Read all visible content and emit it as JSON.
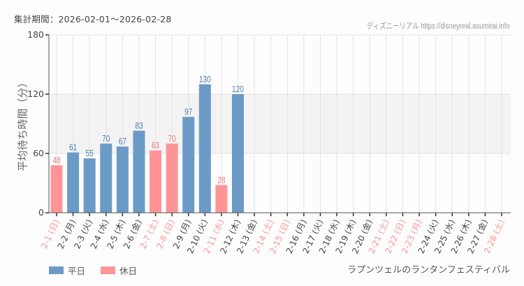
{
  "header": {
    "period_label": "集計期間：2026-02-01～2026-02-28",
    "credit": "ディズニーリアル https://disneyreal.asumirai.info"
  },
  "colors": {
    "weekday": "#6b9ac7",
    "holiday": "#ff9496",
    "weekday_text": "#4e7fb3",
    "holiday_text": "#f27a7c",
    "axis_text": "#444444",
    "band": "#f3f3f3",
    "grid": "#e3e3e3"
  },
  "legend": {
    "weekday_label": "平日",
    "holiday_label": "休日"
  },
  "event_name": "ラプンツェルのランタンフェスティバル",
  "chart_data": {
    "type": "bar",
    "title": "集計期間：2026-02-01～2026-02-28",
    "xlabel": "",
    "ylabel": "平均待ち時間（分）",
    "ylim": [
      0,
      180
    ],
    "yticks": [
      0,
      60,
      120,
      180
    ],
    "shaded_band": [
      60,
      120
    ],
    "grid": true,
    "legend_position": "bottom-left",
    "categories": [
      "2-1 (日)",
      "2-2 (月)",
      "2-3 (火)",
      "2-4 (水)",
      "2-5 (木)",
      "2-6 (金)",
      "2-7 (土)",
      "2-8 (日)",
      "2-9 (月)",
      "2-10 (火)",
      "2-11 (水)",
      "2-12 (木)",
      "2-13 (金)",
      "2-14 (土)",
      "2-15 (日)",
      "2-16 (月)",
      "2-17 (火)",
      "2-18 (水)",
      "2-19 (木)",
      "2-20 (金)",
      "2-21 (土)",
      "2-22 (日)",
      "2-23 (月)",
      "2-24 (火)",
      "2-25 (水)",
      "2-26 (木)",
      "2-27 (金)",
      "2-28 (土)"
    ],
    "holiday": [
      true,
      false,
      false,
      false,
      false,
      false,
      true,
      true,
      false,
      false,
      true,
      false,
      false,
      true,
      true,
      false,
      false,
      false,
      false,
      false,
      true,
      true,
      true,
      false,
      false,
      false,
      false,
      true
    ],
    "values": [
      48,
      61,
      55,
      70,
      67,
      83,
      63,
      70,
      97,
      130,
      28,
      120,
      null,
      null,
      null,
      null,
      null,
      null,
      null,
      null,
      null,
      null,
      null,
      null,
      null,
      null,
      null,
      null
    ],
    "series": [
      {
        "name": "平日",
        "values": [
          null,
          61,
          55,
          70,
          67,
          83,
          null,
          null,
          97,
          130,
          null,
          120,
          null,
          null,
          null,
          null,
          null,
          null,
          null,
          null,
          null,
          null,
          null,
          null,
          null,
          null,
          null,
          null
        ]
      },
      {
        "name": "休日",
        "values": [
          48,
          null,
          null,
          null,
          null,
          null,
          63,
          70,
          null,
          null,
          28,
          null,
          null,
          null,
          null,
          null,
          null,
          null,
          null,
          null,
          null,
          null,
          null,
          null,
          null,
          null,
          null,
          null
        ]
      }
    ]
  }
}
